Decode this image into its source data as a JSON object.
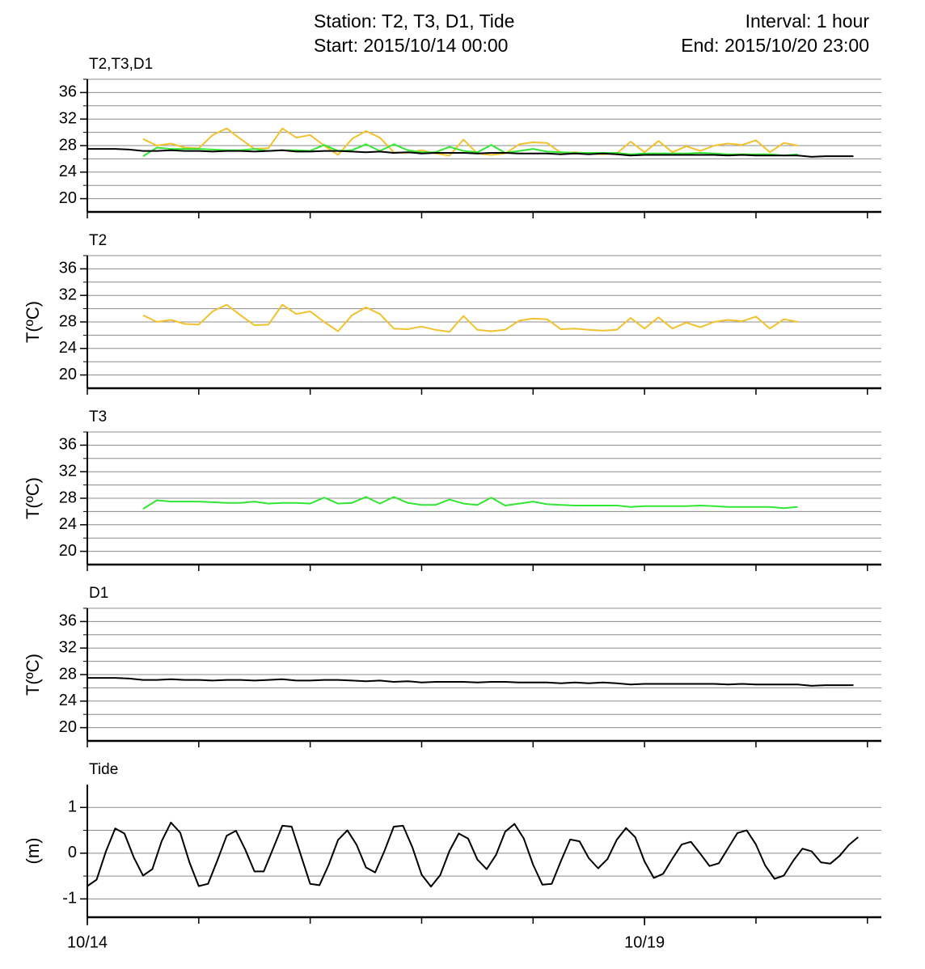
{
  "header": {
    "station": "Station:  T2, T3, D1, Tide",
    "interval": "Interval: 1 hour",
    "start": "Start: 2015/10/14 00:00",
    "end": "End: 2015/10/20 23:00"
  },
  "chart_data": [
    {
      "type": "line",
      "title": "T2,T3,D1",
      "x": [
        0,
        3,
        6,
        9,
        12,
        15,
        18,
        21,
        24,
        27,
        30,
        33,
        36,
        39,
        42,
        45,
        48,
        51,
        54,
        57,
        60,
        63,
        66,
        69,
        72,
        75,
        78,
        81,
        84,
        87,
        90,
        93,
        96,
        99,
        102,
        105,
        108,
        111,
        114,
        117,
        120,
        123,
        126,
        129,
        132,
        135,
        138,
        141,
        144,
        147,
        150,
        153,
        156,
        159,
        162,
        165,
        168
      ],
      "series": [
        {
          "color": "#f2c12e",
          "values": [
            null,
            null,
            null,
            null,
            29.0,
            28.0,
            28.3,
            27.7,
            27.6,
            29.6,
            30.6,
            29.0,
            27.5,
            27.6,
            30.6,
            29.2,
            29.6,
            28.0,
            26.6,
            29.0,
            30.2,
            29.2,
            27.0,
            26.9,
            27.3,
            26.8,
            26.5,
            28.9,
            26.8,
            26.6,
            26.8,
            28.2,
            28.5,
            28.4,
            26.9,
            27.0,
            26.8,
            26.7,
            26.8,
            28.6,
            27.0,
            28.7,
            27.0,
            27.9,
            27.2,
            28.0,
            28.3,
            28.1,
            28.8,
            27.0,
            28.4,
            28.0,
            null,
            null,
            null,
            null,
            null
          ]
        },
        {
          "color": "#33e633",
          "values": [
            null,
            null,
            null,
            null,
            26.4,
            27.7,
            27.5,
            27.5,
            27.5,
            27.4,
            27.3,
            27.3,
            27.5,
            27.2,
            27.3,
            27.3,
            27.2,
            28.1,
            27.2,
            27.3,
            28.2,
            27.2,
            28.2,
            27.3,
            27.0,
            27.0,
            27.8,
            27.2,
            27.0,
            28.1,
            26.9,
            27.2,
            27.5,
            27.1,
            27.0,
            26.9,
            26.9,
            26.9,
            26.9,
            26.7,
            26.8,
            26.8,
            26.8,
            26.8,
            26.9,
            26.8,
            26.7,
            26.7,
            26.7,
            26.7,
            26.5,
            26.7,
            null,
            null,
            null,
            null,
            null
          ]
        },
        {
          "color": "#000000",
          "values": [
            27.5,
            27.5,
            27.5,
            27.4,
            27.2,
            27.2,
            27.3,
            27.2,
            27.2,
            27.1,
            27.2,
            27.2,
            27.1,
            27.2,
            27.3,
            27.1,
            27.1,
            27.2,
            27.2,
            27.1,
            27.0,
            27.1,
            26.9,
            27.0,
            26.8,
            26.9,
            26.9,
            26.9,
            26.8,
            26.9,
            26.9,
            26.8,
            26.8,
            26.8,
            26.7,
            26.8,
            26.7,
            26.8,
            26.7,
            26.5,
            26.6,
            26.6,
            26.6,
            26.6,
            26.6,
            26.6,
            26.5,
            26.6,
            26.5,
            26.5,
            26.5,
            26.5,
            26.3,
            26.4,
            26.4,
            26.4,
            null
          ]
        }
      ],
      "xlim": [
        0,
        171
      ],
      "xminor": [
        0,
        24,
        48,
        72,
        96,
        120,
        144,
        168
      ],
      "ylim": [
        18,
        38
      ],
      "yticks": [
        20,
        24,
        28,
        32,
        36
      ],
      "ygrid": [
        20,
        22,
        24,
        26,
        28,
        30,
        32,
        34,
        36,
        38
      ],
      "grid": true
    },
    {
      "type": "line",
      "title": "T2",
      "ylabel": "T(ºC)",
      "x": [
        0,
        3,
        6,
        9,
        12,
        15,
        18,
        21,
        24,
        27,
        30,
        33,
        36,
        39,
        42,
        45,
        48,
        51,
        54,
        57,
        60,
        63,
        66,
        69,
        72,
        75,
        78,
        81,
        84,
        87,
        90,
        93,
        96,
        99,
        102,
        105,
        108,
        111,
        114,
        117,
        120,
        123,
        126,
        129,
        132,
        135,
        138,
        141,
        144,
        147,
        150,
        153,
        156,
        159,
        162,
        165,
        168
      ],
      "series": [
        {
          "color": "#f2c12e",
          "values": [
            null,
            null,
            null,
            null,
            29.0,
            28.0,
            28.3,
            27.7,
            27.6,
            29.6,
            30.6,
            29.0,
            27.5,
            27.6,
            30.6,
            29.2,
            29.6,
            28.0,
            26.6,
            29.0,
            30.2,
            29.2,
            27.0,
            26.9,
            27.3,
            26.8,
            26.5,
            28.9,
            26.8,
            26.6,
            26.8,
            28.2,
            28.5,
            28.4,
            26.9,
            27.0,
            26.8,
            26.7,
            26.8,
            28.6,
            27.0,
            28.7,
            27.0,
            27.9,
            27.2,
            28.0,
            28.3,
            28.1,
            28.8,
            27.0,
            28.4,
            28.0,
            null,
            null,
            null,
            null,
            null
          ]
        }
      ],
      "xlim": [
        0,
        171
      ],
      "xminor": [
        0,
        24,
        48,
        72,
        96,
        120,
        144,
        168
      ],
      "ylim": [
        18,
        38
      ],
      "yticks": [
        20,
        24,
        28,
        32,
        36
      ],
      "ygrid": [
        20,
        22,
        24,
        26,
        28,
        30,
        32,
        34,
        36,
        38
      ],
      "grid": true
    },
    {
      "type": "line",
      "title": "T3",
      "ylabel": "T(ºC)",
      "x": [
        0,
        3,
        6,
        9,
        12,
        15,
        18,
        21,
        24,
        27,
        30,
        33,
        36,
        39,
        42,
        45,
        48,
        51,
        54,
        57,
        60,
        63,
        66,
        69,
        72,
        75,
        78,
        81,
        84,
        87,
        90,
        93,
        96,
        99,
        102,
        105,
        108,
        111,
        114,
        117,
        120,
        123,
        126,
        129,
        132,
        135,
        138,
        141,
        144,
        147,
        150,
        153,
        156,
        159,
        162,
        165,
        168
      ],
      "series": [
        {
          "color": "#33e633",
          "values": [
            null,
            null,
            null,
            null,
            26.4,
            27.7,
            27.5,
            27.5,
            27.5,
            27.4,
            27.3,
            27.3,
            27.5,
            27.2,
            27.3,
            27.3,
            27.2,
            28.1,
            27.2,
            27.3,
            28.2,
            27.2,
            28.2,
            27.3,
            27.0,
            27.0,
            27.8,
            27.2,
            27.0,
            28.1,
            26.9,
            27.2,
            27.5,
            27.1,
            27.0,
            26.9,
            26.9,
            26.9,
            26.9,
            26.7,
            26.8,
            26.8,
            26.8,
            26.8,
            26.9,
            26.8,
            26.7,
            26.7,
            26.7,
            26.7,
            26.5,
            26.7,
            null,
            null,
            null,
            null,
            null
          ]
        }
      ],
      "xlim": [
        0,
        171
      ],
      "xminor": [
        0,
        24,
        48,
        72,
        96,
        120,
        144,
        168
      ],
      "ylim": [
        18,
        38
      ],
      "yticks": [
        20,
        24,
        28,
        32,
        36
      ],
      "ygrid": [
        20,
        22,
        24,
        26,
        28,
        30,
        32,
        34,
        36,
        38
      ],
      "grid": true
    },
    {
      "type": "line",
      "title": "D1",
      "ylabel": "T(ºC)",
      "x": [
        0,
        3,
        6,
        9,
        12,
        15,
        18,
        21,
        24,
        27,
        30,
        33,
        36,
        39,
        42,
        45,
        48,
        51,
        54,
        57,
        60,
        63,
        66,
        69,
        72,
        75,
        78,
        81,
        84,
        87,
        90,
        93,
        96,
        99,
        102,
        105,
        108,
        111,
        114,
        117,
        120,
        123,
        126,
        129,
        132,
        135,
        138,
        141,
        144,
        147,
        150,
        153,
        156,
        159,
        162,
        165,
        168
      ],
      "series": [
        {
          "color": "#000000",
          "values": [
            27.5,
            27.5,
            27.5,
            27.4,
            27.2,
            27.2,
            27.3,
            27.2,
            27.2,
            27.1,
            27.2,
            27.2,
            27.1,
            27.2,
            27.3,
            27.1,
            27.1,
            27.2,
            27.2,
            27.1,
            27.0,
            27.1,
            26.9,
            27.0,
            26.8,
            26.9,
            26.9,
            26.9,
            26.8,
            26.9,
            26.9,
            26.8,
            26.8,
            26.8,
            26.7,
            26.8,
            26.7,
            26.8,
            26.7,
            26.5,
            26.6,
            26.6,
            26.6,
            26.6,
            26.6,
            26.6,
            26.5,
            26.6,
            26.5,
            26.5,
            26.5,
            26.5,
            26.3,
            26.4,
            26.4,
            26.4,
            null
          ]
        }
      ],
      "xlim": [
        0,
        171
      ],
      "xminor": [
        0,
        24,
        48,
        72,
        96,
        120,
        144,
        168
      ],
      "ylim": [
        18,
        38
      ],
      "yticks": [
        20,
        24,
        28,
        32,
        36
      ],
      "ygrid": [
        20,
        22,
        24,
        26,
        28,
        30,
        32,
        34,
        36,
        38
      ],
      "grid": true
    },
    {
      "type": "line",
      "title": "Tide",
      "ylabel": "(m)",
      "x": [
        0,
        2,
        4,
        6,
        8,
        10,
        12,
        14,
        16,
        18,
        20,
        22,
        24,
        26,
        28,
        30,
        32,
        34,
        36,
        38,
        40,
        42,
        44,
        46,
        48,
        50,
        52,
        54,
        56,
        58,
        60,
        62,
        64,
        66,
        68,
        70,
        72,
        74,
        76,
        78,
        80,
        82,
        84,
        86,
        88,
        90,
        92,
        94,
        96,
        98,
        100,
        102,
        104,
        106,
        108,
        110,
        112,
        114,
        116,
        118,
        120,
        122,
        124,
        126,
        128,
        130,
        132,
        134,
        136,
        138,
        140,
        142,
        144,
        146,
        148,
        150,
        152,
        154,
        156,
        158,
        160,
        162,
        164,
        166
      ],
      "series": [
        {
          "color": "#000000",
          "values": [
            -0.72,
            -0.58,
            0.04,
            0.54,
            0.43,
            -0.09,
            -0.49,
            -0.35,
            0.26,
            0.67,
            0.45,
            -0.2,
            -0.72,
            -0.67,
            -0.16,
            0.38,
            0.49,
            0.08,
            -0.4,
            -0.4,
            0.1,
            0.6,
            0.58,
            -0.05,
            -0.67,
            -0.7,
            -0.25,
            0.29,
            0.5,
            0.18,
            -0.31,
            -0.42,
            0.05,
            0.58,
            0.6,
            0.13,
            -0.47,
            -0.73,
            -0.48,
            0.05,
            0.43,
            0.32,
            -0.14,
            -0.35,
            -0.04,
            0.47,
            0.64,
            0.32,
            -0.25,
            -0.69,
            -0.67,
            -0.17,
            0.3,
            0.26,
            -0.11,
            -0.33,
            -0.13,
            0.29,
            0.55,
            0.35,
            -0.18,
            -0.54,
            -0.45,
            -0.12,
            0.19,
            0.25,
            -0.01,
            -0.28,
            -0.22,
            0.11,
            0.44,
            0.5,
            0.19,
            -0.27,
            -0.56,
            -0.49,
            -0.17,
            0.1,
            0.04,
            -0.2,
            -0.23,
            -0.06,
            0.18,
            0.35
          ]
        }
      ],
      "xlim": [
        0,
        171
      ],
      "xminor": [
        0,
        24,
        48,
        72,
        96,
        120,
        144,
        168
      ],
      "xticks": [
        {
          "value": 0,
          "label": "10/14"
        },
        {
          "value": 120,
          "label": "10/19"
        }
      ],
      "ylim": [
        -1.4,
        1.5
      ],
      "yticks": [
        -1,
        0,
        1
      ],
      "ygrid": [
        -1,
        -0.5,
        0,
        0.5,
        1
      ],
      "grid": true
    }
  ]
}
